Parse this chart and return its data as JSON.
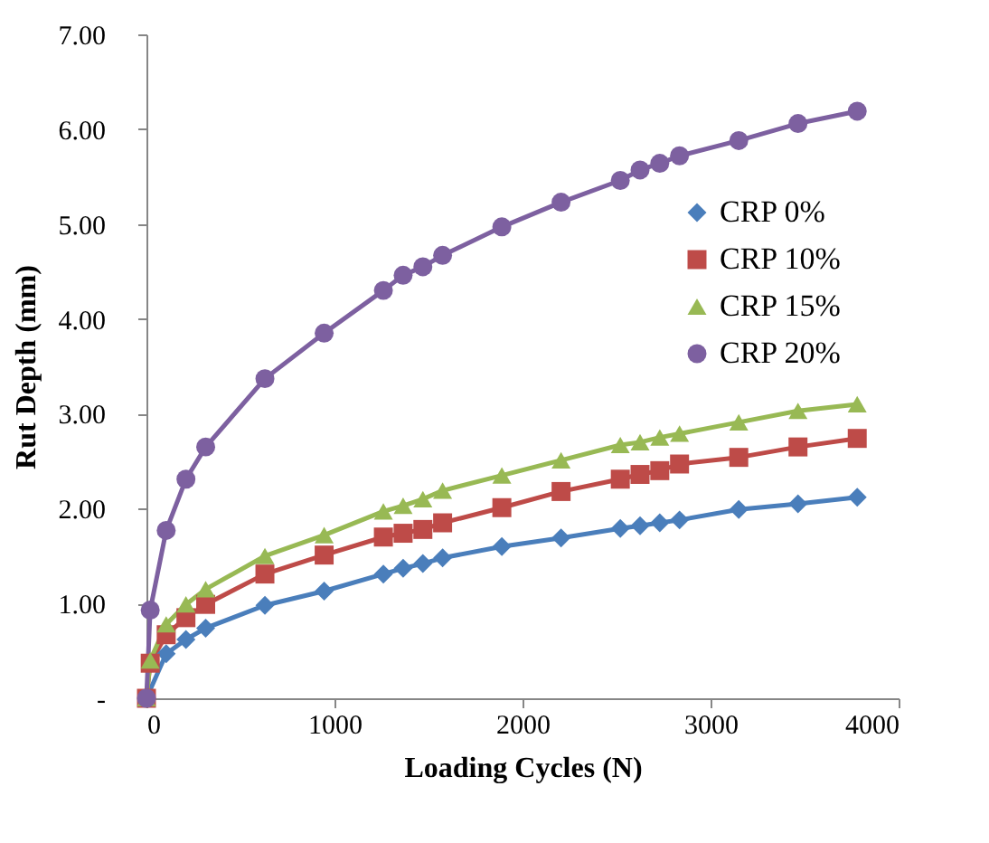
{
  "chart_data": {
    "type": "line",
    "xlabel": "Loading Cycles (N)",
    "ylabel": "Rut  Depth  (mm)",
    "x": [
      0,
      20,
      105,
      210,
      315,
      630,
      945,
      1260,
      1365,
      1470,
      1575,
      1890,
      2205,
      2520,
      2625,
      2730,
      2835,
      3150,
      3465,
      3780
    ],
    "series": [
      {
        "name": "CRP 0%",
        "color": "#4a7ebb",
        "marker": "diamond",
        "values": [
          0,
          null,
          0.47,
          0.62,
          0.74,
          0.98,
          1.13,
          1.31,
          1.37,
          1.42,
          1.48,
          1.6,
          1.69,
          1.79,
          1.82,
          1.85,
          1.88,
          1.99,
          2.05,
          2.12
        ]
      },
      {
        "name": "CRP 10%",
        "color": "#be4b48",
        "marker": "square",
        "values": [
          0,
          0.37,
          0.67,
          0.85,
          0.99,
          1.31,
          1.51,
          1.7,
          1.74,
          1.78,
          1.85,
          2.01,
          2.18,
          2.31,
          2.36,
          2.4,
          2.47,
          2.54,
          2.65,
          2.74
        ]
      },
      {
        "name": "CRP 15%",
        "color": "#98b954",
        "marker": "triangle",
        "values": [
          0,
          0.4,
          0.78,
          0.99,
          1.15,
          1.5,
          1.72,
          1.97,
          2.03,
          2.1,
          2.19,
          2.35,
          2.51,
          2.67,
          2.7,
          2.75,
          2.79,
          2.91,
          3.03,
          3.1
        ]
      },
      {
        "name": "CRP 20%",
        "color": "#7d60a0",
        "marker": "circle",
        "values": [
          0,
          0.93,
          1.77,
          2.31,
          2.65,
          3.37,
          3.85,
          4.3,
          4.46,
          4.55,
          4.67,
          4.97,
          5.23,
          5.46,
          5.57,
          5.64,
          5.72,
          5.88,
          6.06,
          6.19
        ]
      }
    ],
    "xlim": [
      0,
      4000
    ],
    "xticks": [
      0,
      1000,
      2000,
      3000,
      4000
    ],
    "ylim": [
      0,
      7
    ],
    "yticks": [
      {
        "value": 0,
        "label": "-"
      },
      {
        "value": 1,
        "label": "1.00"
      },
      {
        "value": 2,
        "label": "2.00"
      },
      {
        "value": 3,
        "label": "3.00"
      },
      {
        "value": 4,
        "label": "4.00"
      },
      {
        "value": 5,
        "label": "5.00"
      },
      {
        "value": 6,
        "label": "6.00"
      },
      {
        "value": 7,
        "label": "7.00"
      }
    ],
    "grid": false,
    "legend": "right",
    "line_style": "solid"
  }
}
